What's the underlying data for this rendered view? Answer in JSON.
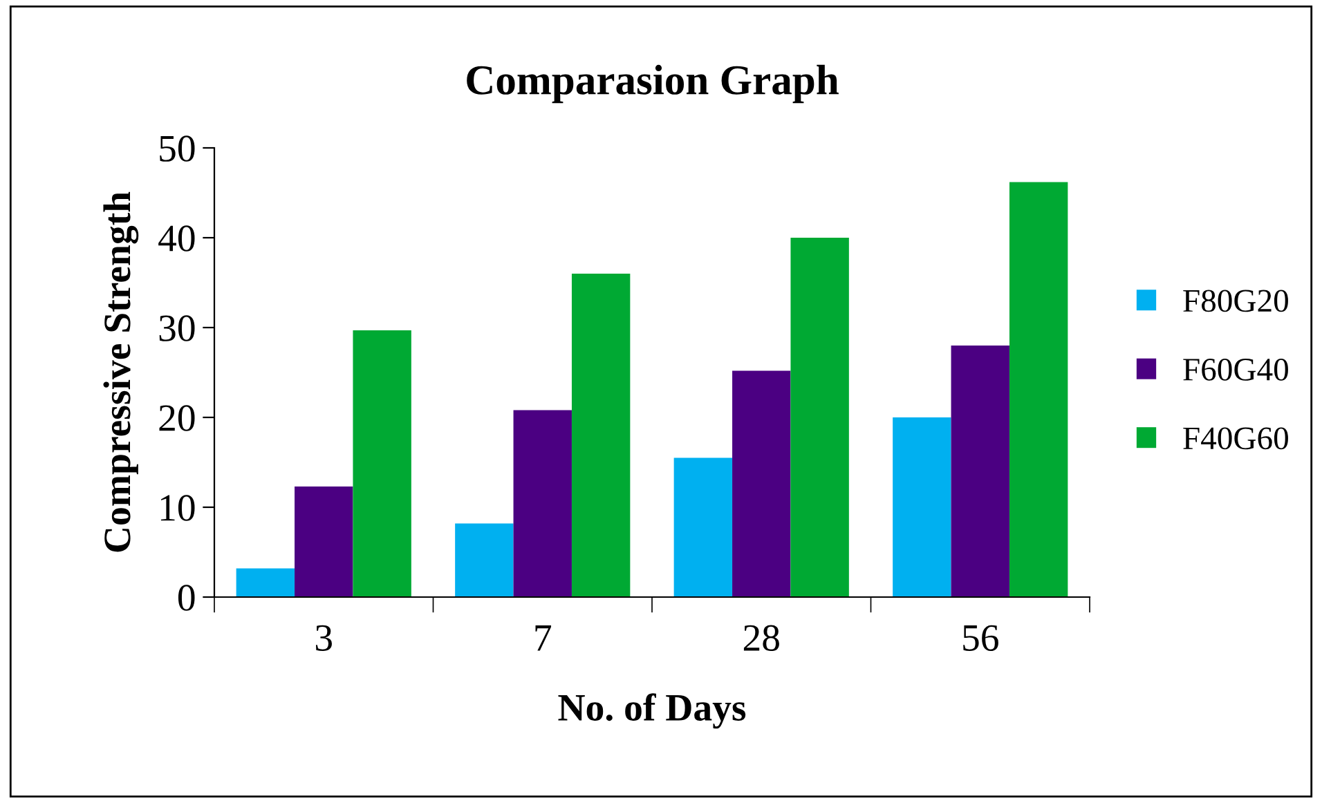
{
  "chart_data": {
    "type": "bar",
    "title": "Comparasion Graph",
    "xlabel": "No. of Days",
    "ylabel": "Compressive Strength",
    "categories": [
      "3",
      "7",
      "28",
      "56"
    ],
    "series": [
      {
        "name": "F80G20",
        "color": "#00b0f0",
        "values": [
          3.2,
          8.2,
          15.5,
          20
        ]
      },
      {
        "name": "F60G40",
        "color": "#4b0082",
        "values": [
          12.3,
          20.8,
          25.2,
          28
        ]
      },
      {
        "name": "F40G60",
        "color": "#00a933",
        "values": [
          29.7,
          36,
          40,
          46.2
        ]
      }
    ],
    "ylim": [
      0,
      50
    ],
    "yticks": [
      0,
      10,
      20,
      30,
      40,
      50
    ],
    "grid": false,
    "legend": "right"
  }
}
